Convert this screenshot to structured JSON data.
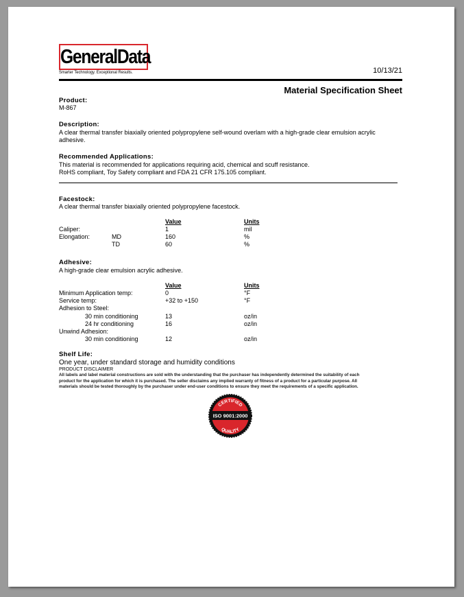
{
  "logo": {
    "brand": "GeneralData",
    "tagline": "Smarter Technology. Exceptional Results."
  },
  "date": "10/13/21",
  "title": "Material Specification Sheet",
  "product": {
    "heading": "Product:",
    "value": "M-867"
  },
  "description": {
    "heading": "Description:",
    "text1": "A clear thermal transfer biaxially oriented polypropylene self-wound overlam with a high-grade clear emulsion acrylic",
    "text2": "adhesive."
  },
  "applications": {
    "heading": "Recommended Applications:",
    "line1": "This material is recommended for applications requiring acid, chemical and scuff resistance.",
    "line2": "RoHS compliant, Toy Safety compliant and FDA 21 CFR 175.105 compliant."
  },
  "facestock": {
    "heading": "Facestock:",
    "text": "A clear thermal transfer biaxially oriented polypropylene facestock.",
    "value_header": "Value",
    "units_header": "Units",
    "rows": [
      {
        "label": "Caliper:",
        "sub": "",
        "value": "1",
        "units": "mil"
      },
      {
        "label": "Elongation:",
        "sub": "MD",
        "value": "160",
        "units": "%"
      },
      {
        "label": "",
        "sub": "TD",
        "value": "60",
        "units": "%"
      }
    ]
  },
  "adhesive": {
    "heading": "Adhesive:",
    "text": "A high-grade clear emulsion acrylic adhesive.",
    "value_header": "Value",
    "units_header": "Units",
    "rows": [
      {
        "label": "Minimum Application temp:",
        "sub": "",
        "value": "0",
        "units": "°F"
      },
      {
        "label": "Service temp:",
        "sub": "",
        "value": "+32 to +150",
        "units": "°F"
      },
      {
        "label": "Adhesion to Steel:",
        "sub": "",
        "value": "",
        "units": ""
      },
      {
        "label": "",
        "sub": "30 min conditioning",
        "value": "13",
        "units": "oz/in"
      },
      {
        "label": "",
        "sub": "24 hr conditioning",
        "value": "16",
        "units": "oz/in"
      },
      {
        "label": "Unwind Adhesion:",
        "sub": "",
        "value": "",
        "units": ""
      },
      {
        "label": "",
        "sub": "30 min conditioning",
        "value": "12",
        "units": "oz/in"
      }
    ]
  },
  "shelf": {
    "heading": "Shelf Life:",
    "text": "One year, under standard storage and humidity conditions"
  },
  "disclaimer": {
    "heading": "PRODUCT DISCLAIMER",
    "line1": "All labels and label material constructions are sold with the understanding that the purchaser has independently determined the suitability of each",
    "line2": "product for the application for which it is purchased. The seller disclaims any implied warranty of fitness of a product for a particular purpose. All",
    "line3": "materials should be tested thoroughly by the purchaser under end-user conditions to ensure they meet the requirements of a specific application."
  },
  "seal": {
    "top": "CERTIFIED",
    "middle": "ISO 9001:2000",
    "bottom": "QUALITY"
  },
  "colors": {
    "brand_red": "#d9262c"
  }
}
